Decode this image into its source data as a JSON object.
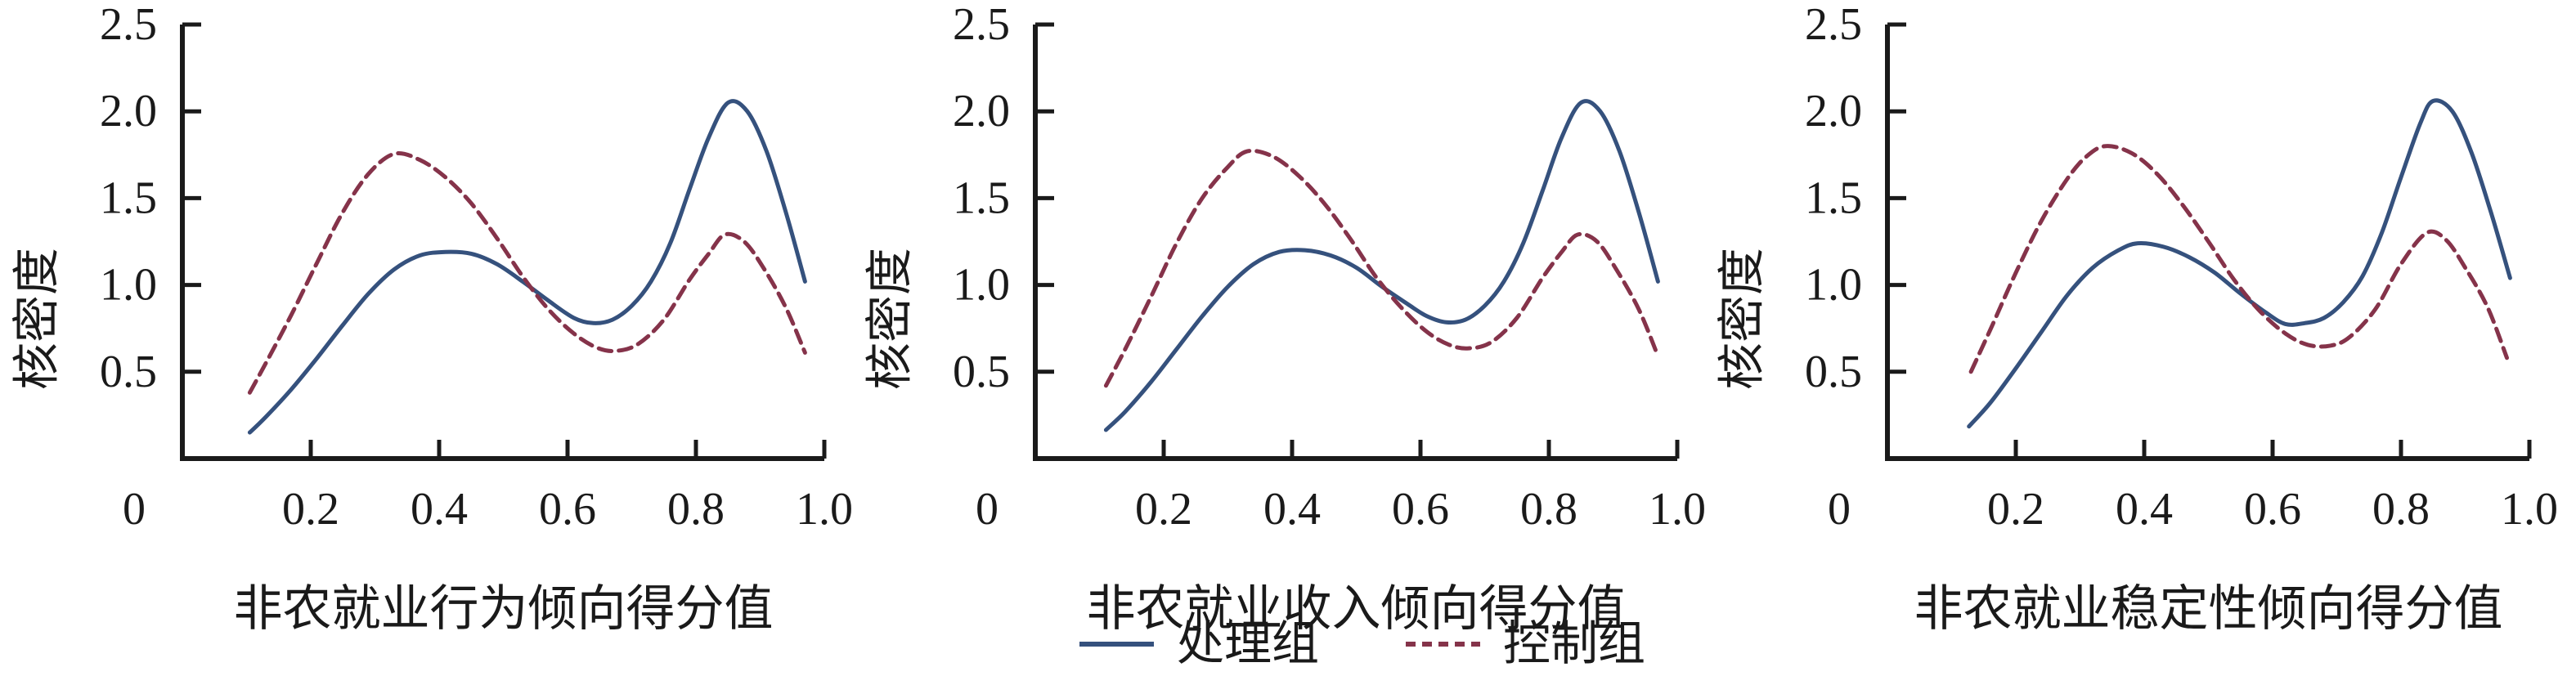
{
  "figure": {
    "background": "#ffffff",
    "axis_color": "#1a1a1a",
    "text_color": "#1a1a1a"
  },
  "legend": {
    "position": "bottom-center",
    "items": [
      {
        "label": "处理组",
        "style": "solid",
        "color": "#35517D"
      },
      {
        "label": "控制组",
        "style": "dashed",
        "color": "#85334A"
      }
    ]
  },
  "chart_data": [
    {
      "type": "line",
      "title": "",
      "xlabel": "非农就业行为倾向得分值",
      "ylabel": "核密度",
      "xlim": [
        0,
        1.0
      ],
      "ylim": [
        0,
        2.5
      ],
      "x_ticks": [
        0.2,
        0.4,
        0.6,
        0.8,
        1.0
      ],
      "x_tick_labels": [
        "0.2",
        "0.4",
        "0.6",
        "0.8",
        "1.0"
      ],
      "y_ticks": [
        0.5,
        1.0,
        1.5,
        2.0,
        2.5
      ],
      "y_tick_labels": [
        "0.5",
        "1.0",
        "1.5",
        "2.0",
        "2.5"
      ],
      "origin_label": "0",
      "grid": false,
      "legend_position": "bottom-center",
      "series": [
        {
          "name": "处理组",
          "line_style": "solid",
          "color": "#35517D",
          "points": [
            [
              0.105,
              0.15
            ],
            [
              0.13,
              0.24
            ],
            [
              0.17,
              0.4
            ],
            [
              0.21,
              0.58
            ],
            [
              0.25,
              0.77
            ],
            [
              0.29,
              0.95
            ],
            [
              0.33,
              1.09
            ],
            [
              0.37,
              1.17
            ],
            [
              0.41,
              1.19
            ],
            [
              0.45,
              1.18
            ],
            [
              0.49,
              1.12
            ],
            [
              0.53,
              1.02
            ],
            [
              0.57,
              0.91
            ],
            [
              0.61,
              0.81
            ],
            [
              0.64,
              0.78
            ],
            [
              0.67,
              0.8
            ],
            [
              0.7,
              0.88
            ],
            [
              0.73,
              1.02
            ],
            [
              0.76,
              1.24
            ],
            [
              0.79,
              1.55
            ],
            [
              0.82,
              1.85
            ],
            [
              0.85,
              2.05
            ],
            [
              0.88,
              2.0
            ],
            [
              0.91,
              1.77
            ],
            [
              0.94,
              1.42
            ],
            [
              0.97,
              1.02
            ]
          ]
        },
        {
          "name": "控制组",
          "line_style": "dashed",
          "color": "#85334A",
          "points": [
            [
              0.105,
              0.38
            ],
            [
              0.13,
              0.55
            ],
            [
              0.17,
              0.83
            ],
            [
              0.21,
              1.13
            ],
            [
              0.25,
              1.42
            ],
            [
              0.29,
              1.64
            ],
            [
              0.33,
              1.755
            ],
            [
              0.37,
              1.72
            ],
            [
              0.41,
              1.62
            ],
            [
              0.45,
              1.47
            ],
            [
              0.49,
              1.27
            ],
            [
              0.53,
              1.05
            ],
            [
              0.57,
              0.86
            ],
            [
              0.61,
              0.72
            ],
            [
              0.645,
              0.64
            ],
            [
              0.675,
              0.62
            ],
            [
              0.71,
              0.66
            ],
            [
              0.75,
              0.8
            ],
            [
              0.79,
              1.03
            ],
            [
              0.82,
              1.18
            ],
            [
              0.845,
              1.29
            ],
            [
              0.875,
              1.25
            ],
            [
              0.905,
              1.1
            ],
            [
              0.94,
              0.87
            ],
            [
              0.97,
              0.61
            ]
          ]
        }
      ]
    },
    {
      "type": "line",
      "title": "",
      "xlabel": "非农就业收入倾向得分值",
      "ylabel": "核密度",
      "xlim": [
        0,
        1.0
      ],
      "ylim": [
        0,
        2.5
      ],
      "x_ticks": [
        0.2,
        0.4,
        0.6,
        0.8,
        1.0
      ],
      "x_tick_labels": [
        "0.2",
        "0.4",
        "0.6",
        "0.8",
        "1.0"
      ],
      "y_ticks": [
        0.5,
        1.0,
        1.5,
        2.0,
        2.5
      ],
      "y_tick_labels": [
        "0.5",
        "1.0",
        "1.5",
        "2.0",
        "2.5"
      ],
      "origin_label": "0",
      "grid": false,
      "legend_position": "bottom-center",
      "series": [
        {
          "name": "处理组",
          "line_style": "solid",
          "color": "#35517D",
          "points": [
            [
              0.11,
              0.165
            ],
            [
              0.14,
              0.27
            ],
            [
              0.18,
              0.44
            ],
            [
              0.22,
              0.63
            ],
            [
              0.26,
              0.82
            ],
            [
              0.3,
              0.99
            ],
            [
              0.34,
              1.12
            ],
            [
              0.38,
              1.19
            ],
            [
              0.42,
              1.2
            ],
            [
              0.46,
              1.17
            ],
            [
              0.5,
              1.1
            ],
            [
              0.54,
              0.99
            ],
            [
              0.58,
              0.89
            ],
            [
              0.61,
              0.82
            ],
            [
              0.64,
              0.785
            ],
            [
              0.67,
              0.8
            ],
            [
              0.7,
              0.88
            ],
            [
              0.73,
              1.02
            ],
            [
              0.76,
              1.24
            ],
            [
              0.79,
              1.54
            ],
            [
              0.82,
              1.85
            ],
            [
              0.85,
              2.05
            ],
            [
              0.88,
              2.0
            ],
            [
              0.91,
              1.77
            ],
            [
              0.94,
              1.42
            ],
            [
              0.97,
              1.02
            ]
          ]
        },
        {
          "name": "控制组",
          "line_style": "dashed",
          "color": "#85334A",
          "points": [
            [
              0.11,
              0.42
            ],
            [
              0.14,
              0.63
            ],
            [
              0.18,
              0.93
            ],
            [
              0.22,
              1.24
            ],
            [
              0.26,
              1.5
            ],
            [
              0.3,
              1.68
            ],
            [
              0.33,
              1.77
            ],
            [
              0.37,
              1.74
            ],
            [
              0.41,
              1.63
            ],
            [
              0.45,
              1.47
            ],
            [
              0.49,
              1.27
            ],
            [
              0.53,
              1.05
            ],
            [
              0.57,
              0.87
            ],
            [
              0.61,
              0.73
            ],
            [
              0.645,
              0.655
            ],
            [
              0.675,
              0.635
            ],
            [
              0.71,
              0.67
            ],
            [
              0.75,
              0.81
            ],
            [
              0.79,
              1.04
            ],
            [
              0.82,
              1.19
            ],
            [
              0.845,
              1.29
            ],
            [
              0.875,
              1.25
            ],
            [
              0.905,
              1.09
            ],
            [
              0.94,
              0.86
            ],
            [
              0.97,
              0.59
            ]
          ]
        }
      ]
    },
    {
      "type": "line",
      "title": "",
      "xlabel": "非农就业稳定性倾向得分值",
      "ylabel": "核密度",
      "xlim": [
        0,
        1.0
      ],
      "ylim": [
        0,
        2.5
      ],
      "x_ticks": [
        0.2,
        0.4,
        0.6,
        0.8,
        1.0
      ],
      "x_tick_labels": [
        "0.2",
        "0.4",
        "0.6",
        "0.8",
        "1.0"
      ],
      "y_ticks": [
        0.5,
        1.0,
        1.5,
        2.0,
        2.5
      ],
      "y_tick_labels": [
        "0.5",
        "1.0",
        "1.5",
        "2.0",
        "2.5"
      ],
      "origin_label": "0",
      "grid": false,
      "legend_position": "bottom-center",
      "series": [
        {
          "name": "处理组",
          "line_style": "solid",
          "color": "#35517D",
          "points": [
            [
              0.127,
              0.185
            ],
            [
              0.16,
              0.32
            ],
            [
              0.2,
              0.52
            ],
            [
              0.24,
              0.73
            ],
            [
              0.28,
              0.94
            ],
            [
              0.32,
              1.1
            ],
            [
              0.36,
              1.2
            ],
            [
              0.39,
              1.24
            ],
            [
              0.43,
              1.22
            ],
            [
              0.47,
              1.16
            ],
            [
              0.51,
              1.07
            ],
            [
              0.55,
              0.95
            ],
            [
              0.59,
              0.84
            ],
            [
              0.62,
              0.775
            ],
            [
              0.65,
              0.78
            ],
            [
              0.68,
              0.81
            ],
            [
              0.71,
              0.9
            ],
            [
              0.74,
              1.05
            ],
            [
              0.77,
              1.3
            ],
            [
              0.8,
              1.62
            ],
            [
              0.83,
              1.93
            ],
            [
              0.85,
              2.06
            ],
            [
              0.88,
              2.0
            ],
            [
              0.91,
              1.76
            ],
            [
              0.94,
              1.42
            ],
            [
              0.97,
              1.04
            ]
          ]
        },
        {
          "name": "控制组",
          "line_style": "dashed",
          "color": "#85334A",
          "points": [
            [
              0.13,
              0.5
            ],
            [
              0.16,
              0.74
            ],
            [
              0.2,
              1.07
            ],
            [
              0.24,
              1.37
            ],
            [
              0.28,
              1.61
            ],
            [
              0.31,
              1.74
            ],
            [
              0.34,
              1.8
            ],
            [
              0.38,
              1.76
            ],
            [
              0.42,
              1.64
            ],
            [
              0.46,
              1.46
            ],
            [
              0.5,
              1.25
            ],
            [
              0.54,
              1.03
            ],
            [
              0.58,
              0.85
            ],
            [
              0.62,
              0.72
            ],
            [
              0.655,
              0.655
            ],
            [
              0.69,
              0.65
            ],
            [
              0.72,
              0.7
            ],
            [
              0.76,
              0.86
            ],
            [
              0.8,
              1.12
            ],
            [
              0.84,
              1.3
            ],
            [
              0.87,
              1.26
            ],
            [
              0.9,
              1.1
            ],
            [
              0.935,
              0.87
            ],
            [
              0.965,
              0.58
            ]
          ]
        }
      ]
    }
  ]
}
